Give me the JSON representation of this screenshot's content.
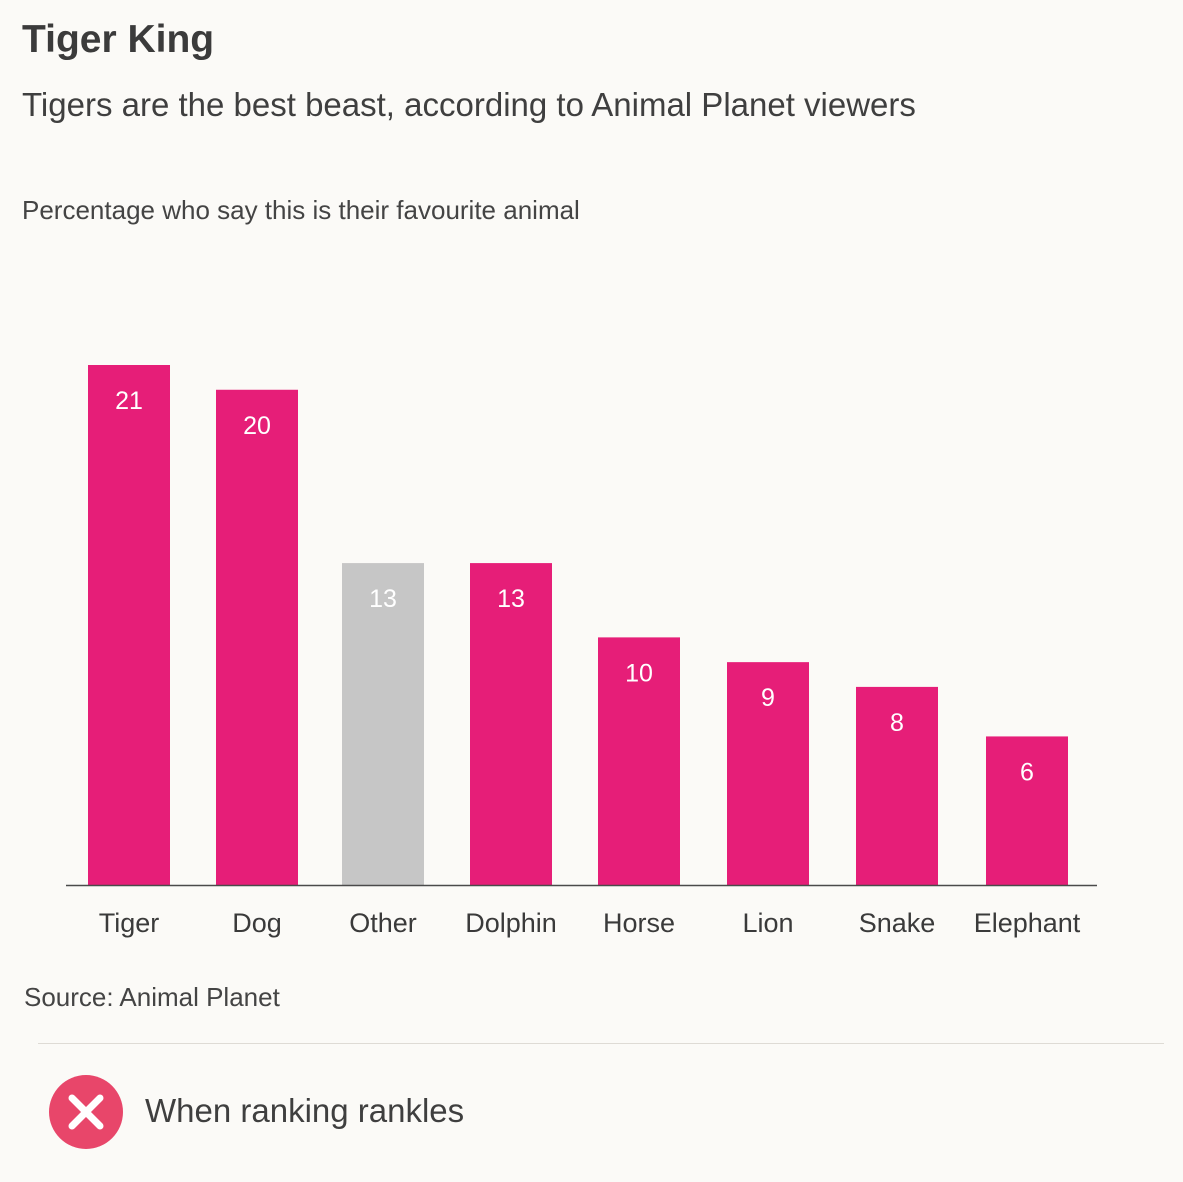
{
  "header": {
    "title": "Tiger King",
    "subtitle": "Tigers are the best beast, according to Animal Planet viewers",
    "axis_caption": "Percentage who say this is their favourite animal"
  },
  "chart_data": {
    "type": "bar",
    "title": "Tiger King",
    "subtitle": "Tigers are the best beast, according to Animal Planet viewers",
    "ylabel": "Percentage who say this is their favourite animal",
    "xlabel": "",
    "categories": [
      "Tiger",
      "Dog",
      "Other",
      "Dolphin",
      "Horse",
      "Lion",
      "Snake",
      "Elephant"
    ],
    "values": [
      21,
      20,
      13,
      13,
      10,
      9,
      8,
      6
    ],
    "data_labels": [
      "21",
      "20",
      "13",
      "13",
      "10",
      "9",
      "8",
      "6"
    ],
    "highlight_category": "Other",
    "ylim": [
      0,
      21
    ],
    "grid": false,
    "colors": {
      "bar": "#e61e78",
      "highlight_bar": "#c6c6c6",
      "label_text": "#ffffff",
      "axis": "#4a4a4a"
    }
  },
  "source": "Source: Animal Planet",
  "footer": {
    "icon": "close-circle-icon",
    "icon_color": "#e8466a",
    "text": "When ranking rankles"
  }
}
